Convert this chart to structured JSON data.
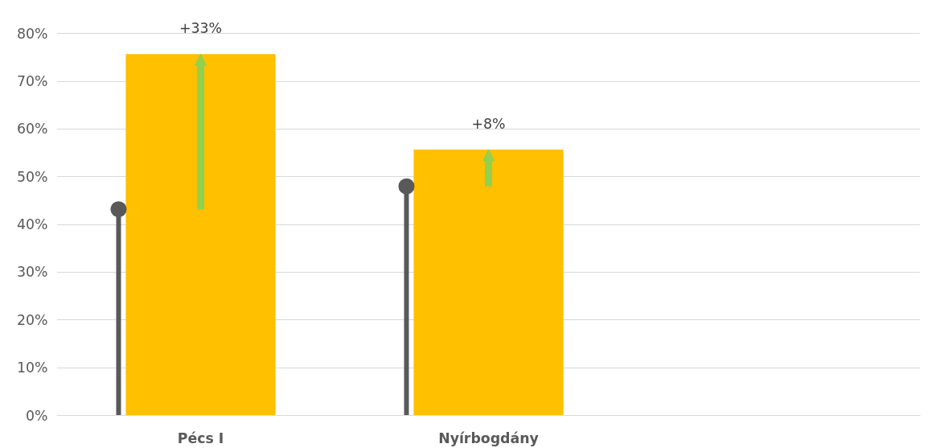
{
  "chart_data": {
    "type": "bar",
    "categories": [
      "Pécs I",
      "Nyírbogdány",
      null
    ],
    "series": [
      {
        "color": "#ffc000",
        "values": [
          75.7,
          55.7,
          null
        ]
      },
      {
        "type": "lollipop",
        "color": "#595959",
        "values": [
          43.2,
          48.0,
          null
        ]
      }
    ],
    "annotations": [
      {
        "text": "+33%",
        "x": "Pécs I",
        "y": 75.7
      },
      {
        "text": "+8%",
        "x": "Nyírbogdány",
        "y": 55.7
      }
    ],
    "ylim": [
      0,
      80
    ],
    "yticks": [
      {
        "value": 0,
        "label": "0%"
      },
      {
        "value": 10,
        "label": "10%"
      },
      {
        "value": 20,
        "label": "20%"
      },
      {
        "value": 30,
        "label": "30%"
      },
      {
        "value": 40,
        "label": "40%"
      },
      {
        "value": 50,
        "label": "50%"
      },
      {
        "value": 60,
        "label": "60%"
      },
      {
        "value": 70,
        "label": "70%"
      },
      {
        "value": 80,
        "label": "80%"
      }
    ],
    "grid": "y"
  }
}
